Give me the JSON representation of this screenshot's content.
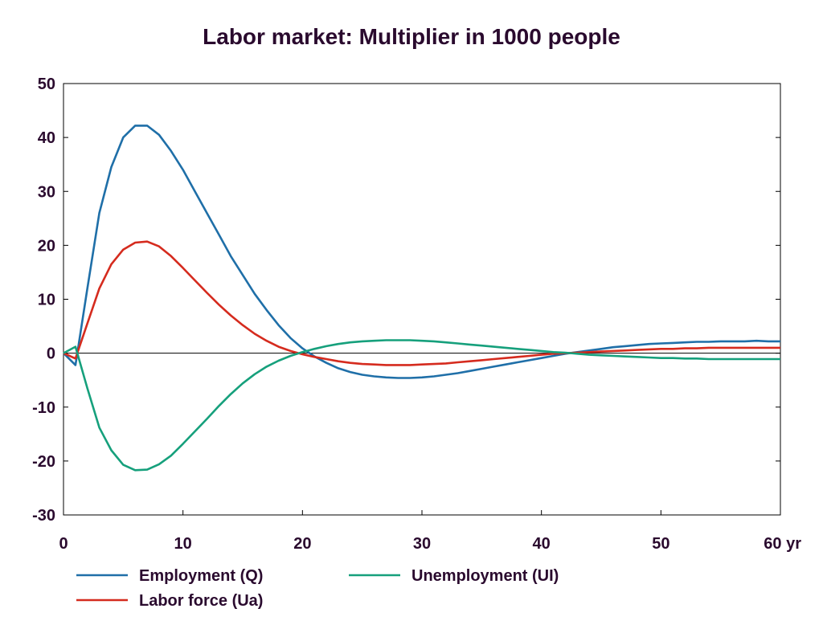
{
  "chart_data": {
    "type": "line",
    "title": "Labor market: Multiplier in 1000 people",
    "xlabel": "",
    "ylabel": "",
    "xlim": [
      0,
      60
    ],
    "ylim": [
      -30,
      50
    ],
    "x_ticks": [
      0,
      10,
      20,
      30,
      40,
      50,
      60
    ],
    "x_tick_labels": [
      "0",
      "10",
      "20",
      "30",
      "40",
      "50",
      "60 yr"
    ],
    "y_ticks": [
      50,
      40,
      30,
      20,
      10,
      0,
      -10,
      -20,
      -30
    ],
    "y_tick_labels": [
      "50",
      "40",
      "30",
      "20",
      "10",
      "0",
      "-10",
      "-20",
      "-30"
    ],
    "grid": false,
    "legend_position": "bottom",
    "x": [
      0,
      1,
      2,
      3,
      4,
      5,
      6,
      7,
      8,
      9,
      10,
      11,
      12,
      13,
      14,
      15,
      16,
      17,
      18,
      19,
      20,
      21,
      22,
      23,
      24,
      25,
      26,
      27,
      28,
      29,
      30,
      31,
      32,
      33,
      34,
      35,
      36,
      37,
      38,
      39,
      40,
      41,
      42,
      43,
      44,
      45,
      46,
      47,
      48,
      49,
      50,
      51,
      52,
      53,
      54,
      55,
      56,
      57,
      58,
      59,
      60
    ],
    "series": [
      {
        "name": "Employment (Q)",
        "color": "#1f6fa8",
        "values": [
          0,
          -2.2,
          12,
          26,
          34.5,
          40,
          42.2,
          42.2,
          40.5,
          37.5,
          34,
          30,
          26,
          22,
          18,
          14.5,
          11,
          8,
          5.2,
          2.8,
          0.9,
          -0.6,
          -1.8,
          -2.8,
          -3.5,
          -4,
          -4.3,
          -4.5,
          -4.6,
          -4.6,
          -4.5,
          -4.3,
          -4,
          -3.7,
          -3.3,
          -2.9,
          -2.5,
          -2.1,
          -1.7,
          -1.3,
          -0.9,
          -0.5,
          -0.1,
          0.2,
          0.5,
          0.8,
          1.1,
          1.3,
          1.5,
          1.7,
          1.8,
          1.9,
          2,
          2.1,
          2.1,
          2.2,
          2.2,
          2.2,
          2.3,
          2.2,
          2.2
        ]
      },
      {
        "name": "Labor force (Ua)",
        "color": "#d52b1e",
        "values": [
          0,
          -1,
          5.5,
          12,
          16.5,
          19.2,
          20.5,
          20.7,
          19.8,
          18,
          15.8,
          13.5,
          11.2,
          9,
          7,
          5.2,
          3.6,
          2.3,
          1.2,
          0.4,
          -0.2,
          -0.7,
          -1.1,
          -1.5,
          -1.8,
          -2,
          -2.1,
          -2.2,
          -2.2,
          -2.2,
          -2.1,
          -2,
          -1.9,
          -1.7,
          -1.5,
          -1.3,
          -1.1,
          -0.9,
          -0.7,
          -0.5,
          -0.3,
          -0.1,
          0,
          0.1,
          0.2,
          0.3,
          0.4,
          0.5,
          0.6,
          0.7,
          0.8,
          0.8,
          0.9,
          0.9,
          1,
          1,
          1,
          1,
          1,
          1,
          1
        ]
      },
      {
        "name": "Unemployment (UI)",
        "color": "#16a07c",
        "values": [
          0,
          1.2,
          -6.5,
          -13.8,
          -18,
          -20.7,
          -21.7,
          -21.6,
          -20.6,
          -19,
          -16.8,
          -14.5,
          -12.2,
          -9.8,
          -7.6,
          -5.6,
          -3.9,
          -2.5,
          -1.4,
          -0.5,
          0.2,
          0.8,
          1.3,
          1.7,
          2,
          2.2,
          2.3,
          2.4,
          2.4,
          2.4,
          2.3,
          2.2,
          2,
          1.8,
          1.6,
          1.4,
          1.2,
          1,
          0.8,
          0.6,
          0.4,
          0.2,
          0.1,
          -0.1,
          -0.3,
          -0.4,
          -0.5,
          -0.6,
          -0.7,
          -0.8,
          -0.9,
          -0.9,
          -1,
          -1,
          -1.1,
          -1.1,
          -1.1,
          -1.1,
          -1.1,
          -1.1,
          -1.1
        ]
      }
    ]
  }
}
